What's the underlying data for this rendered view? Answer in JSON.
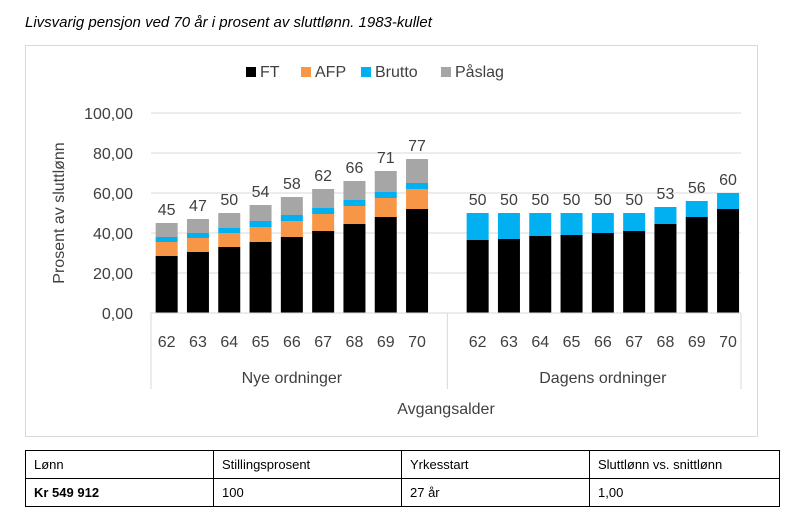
{
  "title": "Livsvarig pensjon ved 70 år i prosent av sluttlønn. 1983-kullet",
  "chart_data": {
    "type": "bar",
    "stacked": true,
    "legend": [
      "FT",
      "AFP",
      "Brutto",
      "Påslag"
    ],
    "colors": {
      "FT": "#000000",
      "AFP": "#f79646",
      "Brutto": "#00b0f0",
      "Påslag": "#a6a6a6"
    },
    "ylabel": "Prosent av sluttlønn",
    "xlabel": "Avgangsalder",
    "ylim": [
      0,
      100
    ],
    "yticks": [
      "0,00",
      "20,00",
      "40,00",
      "60,00",
      "80,00",
      "100,00"
    ],
    "groups": [
      {
        "name": "Nye ordninger",
        "categories": [
          "62",
          "63",
          "64",
          "65",
          "66",
          "67",
          "68",
          "69",
          "70"
        ],
        "series": [
          {
            "name": "FT",
            "values": [
              28.5,
              30.5,
              33,
              35.5,
              38,
              41,
              44.5,
              48,
              52
            ]
          },
          {
            "name": "AFP",
            "values": [
              7,
              7,
              7,
              7.5,
              8,
              8.5,
              9,
              9.5,
              10
            ]
          },
          {
            "name": "Brutto",
            "values": [
              2.5,
              2.5,
              2.5,
              3,
              3,
              3,
              3,
              3,
              3
            ]
          },
          {
            "name": "Påslag",
            "values": [
              7,
              7,
              7.5,
              8,
              9,
              9.5,
              9.5,
              10.5,
              12
            ]
          }
        ],
        "totals": [
          "45",
          "47",
          "50",
          "54",
          "58",
          "62",
          "66",
          "71",
          "77"
        ]
      },
      {
        "name": "Dagens ordninger",
        "categories": [
          "62",
          "63",
          "64",
          "65",
          "66",
          "67",
          "68",
          "69",
          "70"
        ],
        "series": [
          {
            "name": "FT",
            "values": [
              36.5,
              37,
              38.5,
              39,
              40,
              41,
              44.5,
              48,
              52
            ]
          },
          {
            "name": "AFP",
            "values": [
              0,
              0,
              0,
              0,
              0,
              0,
              0,
              0,
              0
            ]
          },
          {
            "name": "Brutto",
            "values": [
              13.5,
              13,
              11.5,
              11,
              10,
              9,
              8.5,
              8,
              8
            ]
          },
          {
            "name": "Påslag",
            "values": [
              0,
              0,
              0,
              0,
              0,
              0,
              0,
              0,
              0
            ]
          }
        ],
        "totals": [
          "50",
          "50",
          "50",
          "50",
          "50",
          "50",
          "53",
          "56",
          "60"
        ]
      }
    ]
  },
  "table": {
    "headers": [
      "Lønn",
      "Stillingsprosent",
      "Yrkesstart",
      "Sluttlønn vs. snittlønn"
    ],
    "values": [
      "Kr 549 912",
      "100",
      "27 år",
      "1,00"
    ]
  }
}
